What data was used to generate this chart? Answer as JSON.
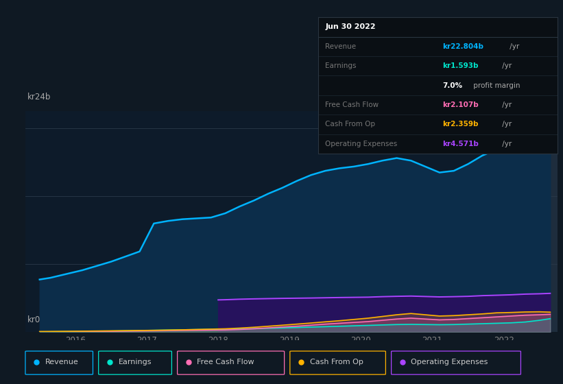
{
  "background_color": "#0f1923",
  "plot_bg_color": "#0d1b2a",
  "highlight_bg_color": "#1e2d3d",
  "x_min": 2015.3,
  "x_max": 2022.75,
  "y_min": 0,
  "y_max": 26,
  "y_tick_24": 24,
  "ylabel_top": "kr24b",
  "ylabel_bottom": "kr0",
  "x_ticks": [
    2016,
    2017,
    2018,
    2019,
    2020,
    2021,
    2022
  ],
  "highlight_start": 2021.85,
  "highlight_end": 2022.75,
  "years": [
    2015.5,
    2015.65,
    2015.8,
    2015.95,
    2016.1,
    2016.3,
    2016.5,
    2016.7,
    2016.9,
    2017.1,
    2017.3,
    2017.5,
    2017.7,
    2017.9,
    2018.1,
    2018.3,
    2018.5,
    2018.7,
    2018.9,
    2019.1,
    2019.3,
    2019.5,
    2019.7,
    2019.9,
    2020.1,
    2020.3,
    2020.5,
    2020.7,
    2020.9,
    2021.1,
    2021.3,
    2021.5,
    2021.7,
    2021.9,
    2022.1,
    2022.3,
    2022.5,
    2022.65
  ],
  "revenue": [
    6.2,
    6.4,
    6.7,
    7.0,
    7.3,
    7.8,
    8.3,
    8.9,
    9.5,
    12.8,
    13.1,
    13.3,
    13.4,
    13.5,
    14.0,
    14.8,
    15.5,
    16.3,
    17.0,
    17.8,
    18.5,
    19.0,
    19.3,
    19.5,
    19.8,
    20.2,
    20.5,
    20.2,
    19.5,
    18.8,
    19.0,
    19.8,
    20.8,
    21.5,
    22.0,
    22.4,
    22.7,
    22.8
  ],
  "earnings": [
    0.04,
    0.05,
    0.06,
    0.07,
    0.08,
    0.1,
    0.13,
    0.16,
    0.19,
    0.22,
    0.25,
    0.28,
    0.31,
    0.33,
    0.35,
    0.38,
    0.42,
    0.46,
    0.5,
    0.55,
    0.6,
    0.65,
    0.7,
    0.75,
    0.8,
    0.85,
    0.9,
    0.92,
    0.9,
    0.88,
    0.9,
    0.95,
    1.0,
    1.05,
    1.1,
    1.2,
    1.4,
    1.59
  ],
  "free_cash_flow": [
    0.02,
    0.03,
    0.04,
    0.05,
    0.06,
    0.08,
    0.1,
    0.12,
    0.14,
    0.16,
    0.18,
    0.2,
    0.22,
    0.24,
    0.26,
    0.32,
    0.4,
    0.5,
    0.6,
    0.7,
    0.82,
    0.95,
    1.05,
    1.15,
    1.25,
    1.4,
    1.55,
    1.65,
    1.55,
    1.45,
    1.5,
    1.6,
    1.7,
    1.8,
    1.9,
    2.0,
    2.05,
    2.1
  ],
  "cash_from_op": [
    0.08,
    0.09,
    0.1,
    0.11,
    0.12,
    0.14,
    0.16,
    0.18,
    0.2,
    0.22,
    0.25,
    0.28,
    0.32,
    0.36,
    0.4,
    0.48,
    0.58,
    0.7,
    0.82,
    0.95,
    1.08,
    1.22,
    1.35,
    1.5,
    1.65,
    1.85,
    2.05,
    2.2,
    2.05,
    1.9,
    1.95,
    2.05,
    2.15,
    2.28,
    2.32,
    2.38,
    2.4,
    2.36
  ],
  "op_expenses_years": [
    2018.0,
    2018.1,
    2018.3,
    2018.5,
    2018.7,
    2018.9,
    2019.1,
    2019.3,
    2019.5,
    2019.7,
    2019.9,
    2020.1,
    2020.3,
    2020.5,
    2020.7,
    2020.9,
    2021.1,
    2021.3,
    2021.5,
    2021.7,
    2021.9,
    2022.1,
    2022.3,
    2022.5,
    2022.65
  ],
  "op_expenses": [
    3.8,
    3.82,
    3.88,
    3.92,
    3.95,
    3.98,
    4.0,
    4.02,
    4.05,
    4.08,
    4.1,
    4.12,
    4.18,
    4.22,
    4.25,
    4.2,
    4.15,
    4.18,
    4.22,
    4.3,
    4.35,
    4.4,
    4.48,
    4.52,
    4.57
  ],
  "revenue_color": "#00b4ff",
  "revenue_fill_color": "#0c2d4a",
  "earnings_color": "#00e5cc",
  "fcf_color": "#ff6eb4",
  "cash_op_color": "#ffb300",
  "op_exp_color": "#aa44ff",
  "op_exp_fill_color": "#2a1060",
  "legend_items": [
    {
      "label": "Revenue",
      "color": "#00b4ff"
    },
    {
      "label": "Earnings",
      "color": "#00e5cc"
    },
    {
      "label": "Free Cash Flow",
      "color": "#ff6eb4"
    },
    {
      "label": "Cash From Op",
      "color": "#ffb300"
    },
    {
      "label": "Operating Expenses",
      "color": "#aa44ff"
    }
  ]
}
